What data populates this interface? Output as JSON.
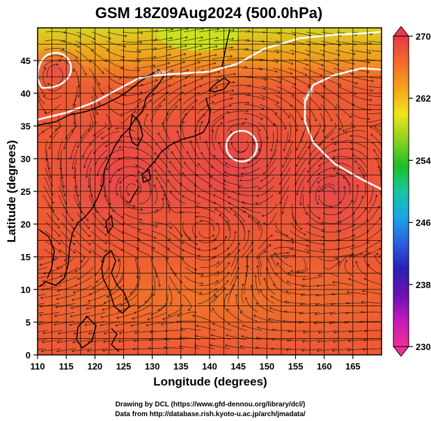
{
  "title": "GSM 18Z09Aug2024 (500.0hPa)",
  "xlabel": "Longitude (degrees)",
  "ylabel": "Latitude  (degrees)",
  "x_ticks": [
    "110",
    "115",
    "120",
    "125",
    "130",
    "135",
    "140",
    "145",
    "150",
    "155",
    "160",
    "165"
  ],
  "y_ticks": [
    "0",
    "5",
    "10",
    "15",
    "20",
    "25",
    "30",
    "35",
    "40",
    "45"
  ],
  "colorbar": {
    "labels": [
      "270",
      "262",
      "254",
      "246",
      "238",
      "230"
    ],
    "colors": [
      "#e8394a",
      "#f26a2a",
      "#f6a21b",
      "#f0e31a",
      "#8fd21c",
      "#1fbe26",
      "#19c7a0",
      "#1aa6e6",
      "#2a5ee0",
      "#2a20b4",
      "#6a12b2",
      "#c41ab8",
      "#ef2f9c"
    ]
  },
  "contour_labels": [
    "5880",
    "5880",
    "5880"
  ],
  "credits": [
    "Drawing by DCL (https://www.gfd-dennou.org/library/dcl/)",
    "Data from http://database.rish.kyoto-u.ac.jp/arch/jmadata/"
  ]
}
